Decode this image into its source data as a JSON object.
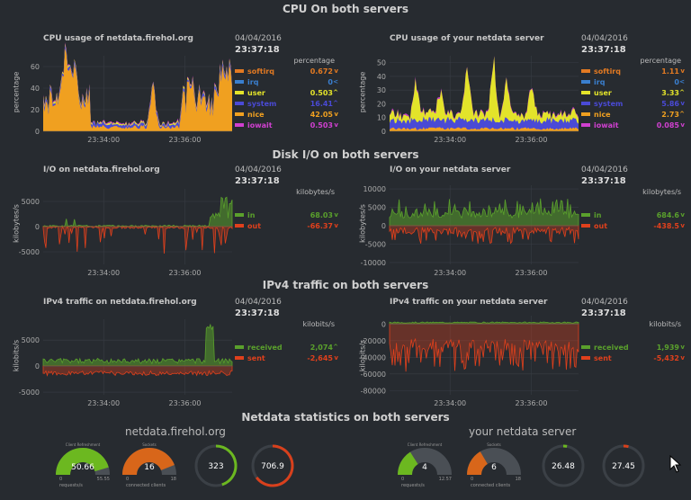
{
  "sections": {
    "cpu": "CPU On both servers",
    "disk": "Disk I/O on both servers",
    "ipv4": "IPv4 traffic on both servers",
    "stats": "Netdata statistics on both servers"
  },
  "time": {
    "date": "04/04/2016",
    "clock": "23:37:18"
  },
  "charts": {
    "cpu_left": {
      "title": "CPU usage of netdata.firehol.org",
      "units": "percentage",
      "ylabel": "percentage",
      "yticks": [
        "0",
        "20",
        "40",
        "60"
      ],
      "xticks": [
        "23:34:00",
        "23:36:00"
      ],
      "legend": [
        {
          "name": "softirq",
          "value": "0.672",
          "arrow": "v",
          "color": "#e37a22"
        },
        {
          "name": "irq",
          "value": "0",
          "arrow": "<",
          "color": "#3a7fcf"
        },
        {
          "name": "user",
          "value": "0.503",
          "arrow": "^",
          "color": "#e3e32a"
        },
        {
          "name": "system",
          "value": "16.41",
          "arrow": "^",
          "color": "#4a4ad6"
        },
        {
          "name": "nice",
          "value": "42.05",
          "arrow": "v",
          "color": "#f0a020"
        },
        {
          "name": "iowait",
          "value": "0.503",
          "arrow": "v",
          "color": "#d040d0"
        }
      ]
    },
    "cpu_right": {
      "title": "CPU usage of your netdata server",
      "units": "percentage",
      "ylabel": "percentage",
      "yticks": [
        "0",
        "10",
        "20",
        "30",
        "40",
        "50"
      ],
      "xticks": [
        "23:34:00",
        "23:36:00"
      ],
      "legend": [
        {
          "name": "softirq",
          "value": "1.11",
          "arrow": "v",
          "color": "#e37a22"
        },
        {
          "name": "irq",
          "value": "0",
          "arrow": "<",
          "color": "#3a7fcf"
        },
        {
          "name": "user",
          "value": "3.33",
          "arrow": "^",
          "color": "#e3e32a"
        },
        {
          "name": "system",
          "value": "5.86",
          "arrow": "v",
          "color": "#4a4ad6"
        },
        {
          "name": "nice",
          "value": "2.73",
          "arrow": "^",
          "color": "#f0a020"
        },
        {
          "name": "iowait",
          "value": "0.085",
          "arrow": "v",
          "color": "#d040d0"
        }
      ]
    },
    "io_left": {
      "title": "I/O on netdata.firehol.org",
      "units": "kilobytes/s",
      "ylabel": "kilobytes/s",
      "yticks": [
        "5000",
        "0",
        "-5000"
      ],
      "xticks": [
        "23:34:00",
        "23:36:00"
      ],
      "legend": [
        {
          "name": "in",
          "value": "68.03",
          "arrow": "v",
          "color": "#5aa02c"
        },
        {
          "name": "out",
          "value": "-66.37",
          "arrow": "v",
          "color": "#e0401c"
        }
      ]
    },
    "io_right": {
      "title": "I/O on your netdata server",
      "units": "kilobytes/s",
      "ylabel": "kilobytes/s",
      "yticks": [
        "10000",
        "5000",
        "0",
        "-5000",
        "-10000"
      ],
      "xticks": [
        "23:34:00",
        "23:36:00"
      ],
      "legend": [
        {
          "name": "in",
          "value": "684.6",
          "arrow": "v",
          "color": "#5aa02c"
        },
        {
          "name": "out",
          "value": "-438.5",
          "arrow": "v",
          "color": "#e0401c"
        }
      ]
    },
    "net_left": {
      "title": "IPv4 traffic on netdata.firehol.org",
      "units": "kilobits/s",
      "ylabel": "kilobits/s",
      "yticks": [
        "5000",
        "0",
        "-5000"
      ],
      "xticks": [
        "23:34:00",
        "23:36:00"
      ],
      "legend": [
        {
          "name": "received",
          "value": "2,074",
          "arrow": "^",
          "color": "#5aa02c"
        },
        {
          "name": "sent",
          "value": "-2,645",
          "arrow": "v",
          "color": "#e0401c"
        }
      ]
    },
    "net_right": {
      "title": "IPv4 traffic on your netdata server",
      "units": "kilobits/s",
      "ylabel": "kilobits/s",
      "yticks": [
        "0",
        "-20000",
        "-40000",
        "-60000",
        "-80000"
      ],
      "xticks": [
        "23:34:00",
        "23:36:00"
      ],
      "legend": [
        {
          "name": "received",
          "value": "1,939",
          "arrow": "v",
          "color": "#5aa02c"
        },
        {
          "name": "sent",
          "value": "-5,432",
          "arrow": "v",
          "color": "#e0401c"
        }
      ]
    }
  },
  "stats": {
    "left_server": "netdata.firehol.org",
    "right_server": "your netdata server",
    "left": {
      "g1": {
        "title": "Client Refreshment",
        "value": "50.66",
        "min": "0",
        "max": "55.55",
        "unit": "requests/s",
        "fraction": 0.91
      },
      "g2": {
        "title": "Sockets",
        "value": "16",
        "min": "0",
        "max": "18",
        "unit": "connected clients",
        "fraction": 0.88
      },
      "d1": {
        "value": "323",
        "fraction": 0.45
      },
      "d2": {
        "value": "706.9",
        "fraction": 0.65
      }
    },
    "right": {
      "g1": {
        "title": "Client Refreshment",
        "value": "4",
        "min": "0",
        "max": "12.57",
        "unit": "requests/s",
        "fraction": 0.32
      },
      "g2": {
        "title": "Sockets",
        "value": "6",
        "min": "0",
        "max": "18",
        "unit": "connected clients",
        "fraction": 0.33
      },
      "d1": {
        "value": "26.48",
        "fraction": 0.03
      },
      "d2": {
        "value": "27.45",
        "fraction": 0.04
      }
    }
  },
  "colors": {
    "bg": "#272b30",
    "green": "#5aa02c",
    "red": "#e0401c",
    "orange": "#e06a1c",
    "yellow": "#e3e32a",
    "blue": "#4a4ad6"
  }
}
